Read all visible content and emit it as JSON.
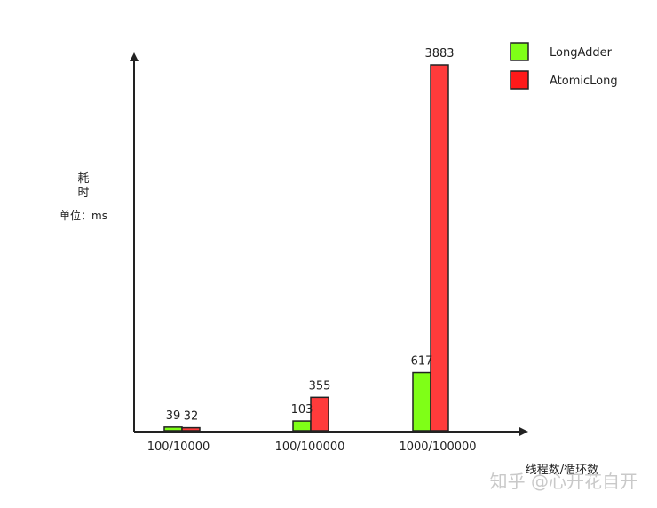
{
  "chart_data": {
    "type": "bar",
    "categories": [
      "100/10000",
      "100/100000",
      "1000/100000"
    ],
    "series": [
      {
        "name": "LongAdder",
        "values": [
          39,
          103,
          617
        ],
        "color": "#7fff17"
      },
      {
        "name": "AtomicLong",
        "values": [
          32,
          355,
          3883
        ],
        "color": "#ff3b3b"
      }
    ],
    "xlabel": "线程数/循环数",
    "ylabel_line1": "耗",
    "ylabel_line2": "时",
    "unit_label": "单位：ms",
    "legend_position": "top-right",
    "ylim": [
      0,
      3883
    ],
    "grid": false
  },
  "watermark": "知乎 @心开花自开"
}
